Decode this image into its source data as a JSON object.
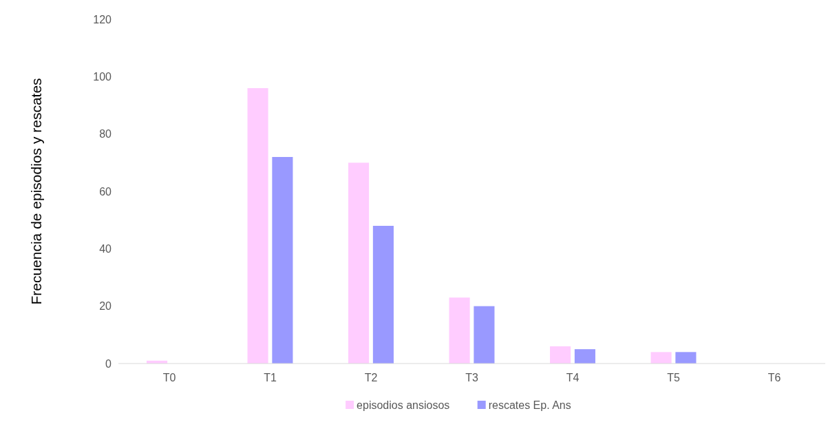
{
  "chart_data": {
    "type": "bar",
    "ylabel": "Frecuencia de episodios y rescates",
    "categories": [
      "T0",
      "T1",
      "T2",
      "T3",
      "T4",
      "T5",
      "T6"
    ],
    "series": [
      {
        "name": "episodios ansiosos",
        "color": "#ffccff",
        "values": [
          1,
          96,
          70,
          23,
          6,
          4,
          0
        ]
      },
      {
        "name": "rescates Ep. Ans",
        "color": "#9999ff",
        "values": [
          0,
          72,
          48,
          20,
          5,
          4,
          0
        ]
      }
    ],
    "ylim": [
      0,
      120
    ],
    "yticks": [
      0,
      20,
      40,
      60,
      80,
      100,
      120
    ],
    "grid": false,
    "legend": "bottom"
  }
}
